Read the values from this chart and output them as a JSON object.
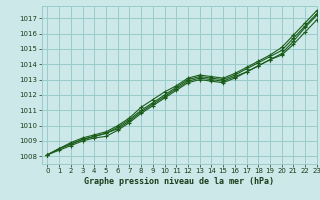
{
  "title": "Graphe pression niveau de la mer (hPa)",
  "bg_color": "#cce8e8",
  "grid_color": "#99cccc",
  "line_color": "#1a5c1a",
  "text_color": "#1a3d1a",
  "xlim": [
    -0.5,
    23
  ],
  "ylim": [
    1007.5,
    1017.8
  ],
  "yticks": [
    1008,
    1009,
    1010,
    1011,
    1012,
    1013,
    1014,
    1015,
    1016,
    1017
  ],
  "xticks": [
    0,
    1,
    2,
    3,
    4,
    5,
    6,
    7,
    8,
    9,
    10,
    11,
    12,
    13,
    14,
    15,
    16,
    17,
    18,
    19,
    20,
    21,
    22,
    23
  ],
  "series": [
    [
      1008.1,
      1008.5,
      1008.8,
      1009.1,
      1009.3,
      1009.5,
      1009.8,
      1010.3,
      1010.9,
      1011.4,
      1011.9,
      1012.4,
      1012.9,
      1013.1,
      1013.0,
      1012.9,
      1013.2,
      1013.5,
      1013.9,
      1014.3,
      1014.7,
      1015.5,
      1016.4,
      1017.2
    ],
    [
      1008.1,
      1008.5,
      1008.9,
      1009.2,
      1009.4,
      1009.6,
      1010.0,
      1010.5,
      1011.2,
      1011.7,
      1012.2,
      1012.6,
      1013.1,
      1013.3,
      1013.2,
      1013.1,
      1013.4,
      1013.8,
      1014.2,
      1014.6,
      1015.1,
      1015.9,
      1016.7,
      1017.5
    ],
    [
      1008.1,
      1008.5,
      1008.8,
      1009.1,
      1009.3,
      1009.5,
      1009.9,
      1010.4,
      1011.0,
      1011.5,
      1012.0,
      1012.5,
      1013.0,
      1013.2,
      1013.1,
      1013.0,
      1013.3,
      1013.7,
      1014.1,
      1014.5,
      1014.9,
      1015.7,
      1016.5,
      1017.3
    ],
    [
      1008.1,
      1008.4,
      1008.7,
      1009.0,
      1009.2,
      1009.3,
      1009.7,
      1010.2,
      1010.8,
      1011.3,
      1011.8,
      1012.3,
      1012.8,
      1013.0,
      1012.9,
      1012.8,
      1013.1,
      1013.5,
      1013.9,
      1014.3,
      1014.6,
      1015.3,
      1016.1,
      1016.9
    ]
  ]
}
